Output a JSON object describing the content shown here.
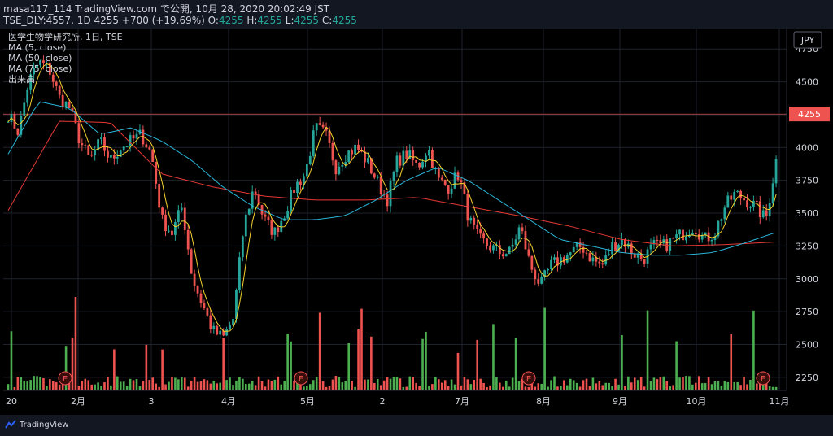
{
  "header": {
    "publish_line": "masa117_114 TradingView.com で公開, 10月 28, 2020 20:02:49 JST",
    "symbol": "TSE_DLY:4557, 1D",
    "last": "4255",
    "change": "+700 (+19.69%)",
    "o_label": "O:",
    "o": "4255",
    "h_label": "H:",
    "h": "4255",
    "l_label": "L:",
    "l": "4255",
    "c_label": "C:",
    "c": "4255"
  },
  "legend": {
    "title": "医学生物学研究所, 1日, TSE",
    "ma5": "MA (5, close)",
    "ma50": "MA (50, close)",
    "ma75": "MA (75, close)",
    "volume": "出来高"
  },
  "currency": "JPY",
  "last_price_label": "4255",
  "brand": "TradingView",
  "earnings_marker": "E",
  "colors": {
    "up": "#26a69a",
    "down": "#ef5350",
    "vol_up": "#4caf50",
    "vol_down": "#ef5350",
    "ma5": "#f5d22d",
    "ma50": "#29b6d8",
    "ma75": "#e53935",
    "grid": "#1e222d",
    "lastline": "#ef5350"
  },
  "chart_data": {
    "type": "candlestick",
    "y_ticks": [
      2250,
      2500,
      2750,
      3000,
      3250,
      3500,
      3750,
      4000,
      4250,
      4500,
      4750
    ],
    "ylim": [
      2150,
      4900
    ],
    "x_ticks": [
      "20",
      "2月",
      "3",
      "4月",
      "5月",
      "2",
      "7月",
      "8月",
      "9月",
      "10月",
      "11月"
    ],
    "last_price": 4255,
    "anchors": [
      4250,
      4120,
      4500,
      4650,
      4600,
      4380,
      4300,
      4050,
      3900,
      4050,
      3900,
      4000,
      4050,
      4100,
      3950,
      3450,
      3350,
      3550,
      3000,
      2800,
      2600,
      2550,
      2700,
      3400,
      3700,
      3450,
      3350,
      3500,
      3700,
      3800,
      4150,
      4100,
      3850,
      3950,
      4000,
      3900,
      3750,
      3600,
      3900,
      3950,
      3850,
      4000,
      3750,
      3700,
      3800,
      3450,
      3300,
      3250,
      3200,
      3200,
      3400,
      3100,
      2950,
      3100,
      3150,
      3200,
      3250,
      3150,
      3100,
      3250,
      3300,
      3200,
      3150,
      3250,
      3250,
      3300,
      3350,
      3400,
      3300,
      3350,
      3550,
      3650,
      3600,
      3550,
      3450,
      3900
    ],
    "ma50_anchors": [
      3950,
      4350,
      4300,
      4100,
      4150,
      4050,
      3900,
      3700,
      3550,
      3450,
      3450,
      3480,
      3600,
      3750,
      3850,
      3750,
      3600,
      3450,
      3300,
      3250,
      3200,
      3180,
      3180,
      3200,
      3270,
      3350
    ],
    "ma75_anchors": [
      3520,
      4200,
      4190,
      3800,
      3700,
      3630,
      3600,
      3600,
      3620,
      3550,
      3480,
      3400,
      3300,
      3250,
      3260,
      3280
    ],
    "earnings_x": [
      80,
      370,
      650,
      938
    ]
  }
}
